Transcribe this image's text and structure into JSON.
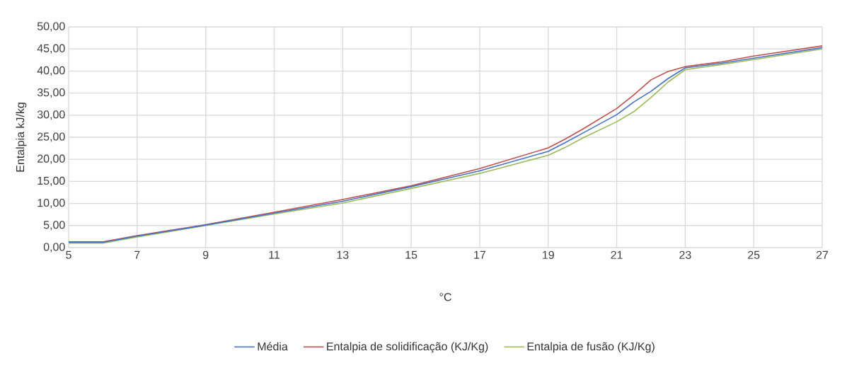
{
  "chart_data": {
    "type": "line",
    "xlabel": "°C",
    "ylabel": "Entalpia kJ/kg",
    "x": [
      5,
      6,
      7,
      9,
      11,
      13,
      15,
      17,
      19,
      19.5,
      20,
      21,
      21.5,
      22,
      22.5,
      23,
      24,
      25,
      27
    ],
    "series": [
      {
        "name": "Média",
        "color": "#4472c4",
        "values": [
          1.2,
          1.2,
          2.6,
          5.1,
          7.8,
          10.5,
          13.8,
          17.4,
          21.8,
          23.8,
          25.9,
          30.1,
          33.0,
          35.4,
          38.3,
          40.7,
          41.7,
          42.9,
          45.3
        ]
      },
      {
        "name": "Entalpia de solidificação (KJ/Kg)",
        "color": "#c0504d",
        "values": [
          1.3,
          1.3,
          2.7,
          5.2,
          8.0,
          10.9,
          14.0,
          17.9,
          22.6,
          24.6,
          26.8,
          31.5,
          34.6,
          38.0,
          39.9,
          41.0,
          42.0,
          43.4,
          45.7
        ]
      },
      {
        "name": "Entalpia de fusão (KJ/Kg)",
        "color": "#9bbb59",
        "values": [
          1.0,
          1.0,
          2.4,
          5.0,
          7.6,
          10.1,
          13.4,
          16.8,
          20.9,
          22.7,
          24.8,
          28.5,
          30.8,
          34.0,
          37.5,
          40.3,
          41.4,
          42.6,
          45.0
        ]
      }
    ],
    "xlim": [
      5,
      27
    ],
    "xticks": [
      5,
      7,
      9,
      11,
      13,
      15,
      17,
      19,
      21,
      23,
      25,
      27
    ],
    "ylim": [
      0,
      50
    ],
    "yticks": [
      {
        "value": 0,
        "label": "0,00"
      },
      {
        "value": 5,
        "label": "5,00"
      },
      {
        "value": 10,
        "label": "10,00"
      },
      {
        "value": 15,
        "label": "15,00"
      },
      {
        "value": 20,
        "label": "20,00"
      },
      {
        "value": 25,
        "label": "25,00"
      },
      {
        "value": 30,
        "label": "30,00"
      },
      {
        "value": 35,
        "label": "35,00"
      },
      {
        "value": 40,
        "label": "40,00"
      },
      {
        "value": 45,
        "label": "45,00"
      },
      {
        "value": 50,
        "label": "50,00"
      }
    ],
    "grid": true,
    "legend": "bottom",
    "marker": "none",
    "line_style": "solid"
  }
}
